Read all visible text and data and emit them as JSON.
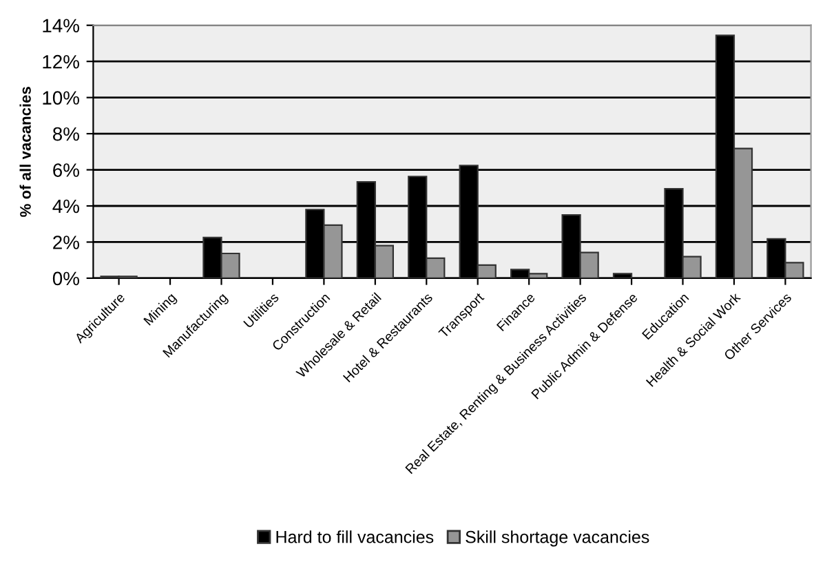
{
  "chart_data": {
    "type": "bar",
    "ylabel": "% of all vacancies",
    "categories": [
      "Agriculture",
      "Mining",
      "Manufacturing",
      "Utilities",
      "Construction",
      "Wholesale & Retail",
      "Hotel & Restaurants",
      "Transport",
      "Finance",
      "Real Estate, Renting & Business Activities",
      "Public Admin & Defense",
      "Education",
      "Health & Social Work",
      "Other Services"
    ],
    "series": [
      {
        "name": "Hard to fill vacancies",
        "color": "#000000",
        "values": [
          0.1,
          0,
          2.25,
          0,
          3.8,
          5.33,
          5.63,
          6.24,
          0.48,
          3.5,
          0.25,
          4.95,
          13.44,
          2.18
        ]
      },
      {
        "name": "Skill shortage vacancies",
        "color": "#969696",
        "values": [
          0.1,
          0,
          1.37,
          0,
          2.94,
          1.8,
          1.11,
          0.73,
          0.25,
          1.42,
          0,
          1.19,
          7.18,
          0.86
        ]
      }
    ],
    "ylim": [
      0,
      14
    ],
    "yticks": [
      {
        "value": 0,
        "label": "0%"
      },
      {
        "value": 2,
        "label": "2%"
      },
      {
        "value": 4,
        "label": "4%"
      },
      {
        "value": 6,
        "label": "6%"
      },
      {
        "value": 8,
        "label": "8%"
      },
      {
        "value": 10,
        "label": "10%"
      },
      {
        "value": 12,
        "label": "12%"
      },
      {
        "value": 14,
        "label": "14%"
      }
    ],
    "grid": "y",
    "legend": "bottom"
  }
}
